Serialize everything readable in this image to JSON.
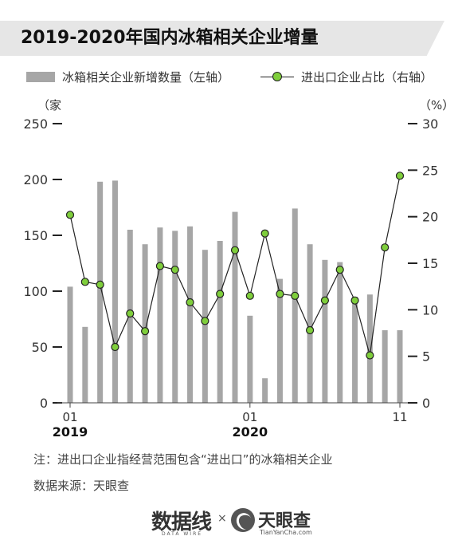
{
  "title": "2019-2020年国内冰箱相关企业增量",
  "legend": {
    "bar_label": "冰箱相关企业新增数量（左轴）",
    "line_label": "进出口企业占比（右轴）"
  },
  "axes": {
    "left_unit": "（家",
    "right_unit": "（%）"
  },
  "note": "注：进出口企业指经营范围包含“进出口”的冰箱相关企业",
  "source": "数据来源：天眼查",
  "footer": {
    "brand1": "数据线",
    "brand1_sub": "DATA WIRE",
    "times": "×",
    "brand2": "天眼查",
    "brand2_sub": "TianYanCha.com"
  },
  "colors": {
    "bar": "#a6a6a6",
    "line": "#222222",
    "marker": "#7fce3c",
    "title_bg": "#e6e6e6"
  },
  "chart_data": {
    "type": "bar",
    "categories": [
      "2019-01",
      "2019-02",
      "2019-03",
      "2019-04",
      "2019-05",
      "2019-06",
      "2019-07",
      "2019-08",
      "2019-09",
      "2019-10",
      "2019-11",
      "2019-12",
      "2020-01",
      "2020-02",
      "2020-03",
      "2020-04",
      "2020-05",
      "2020-06",
      "2020-07",
      "2020-08",
      "2020-09",
      "2020-10",
      "2020-11"
    ],
    "x_tick_labels": [
      "01",
      "",
      "",
      "",
      "",
      "",
      "",
      "",
      "",
      "",
      "",
      "",
      "01",
      "",
      "",
      "",
      "",
      "",
      "",
      "",
      "",
      "",
      "11"
    ],
    "year_labels": [
      {
        "index": 0,
        "label": "2019"
      },
      {
        "index": 12,
        "label": "2020"
      }
    ],
    "series": [
      {
        "name": "冰箱相关企业新增数量（左轴）",
        "axis": "left",
        "type": "bar",
        "values": [
          104,
          68,
          198,
          199,
          155,
          142,
          157,
          154,
          158,
          137,
          145,
          171,
          78,
          22,
          111,
          174,
          142,
          128,
          126,
          95,
          97,
          65,
          65
        ]
      },
      {
        "name": "进出口企业占比（右轴）",
        "axis": "right",
        "type": "line",
        "values": [
          20.2,
          13.0,
          12.7,
          6.0,
          9.6,
          7.7,
          14.7,
          14.3,
          10.8,
          8.8,
          11.7,
          16.4,
          11.5,
          18.2,
          11.7,
          11.5,
          7.8,
          11.0,
          14.3,
          11.0,
          5.1,
          16.7,
          24.4
        ]
      }
    ],
    "left_axis": {
      "ylim": [
        0,
        250
      ],
      "ticks": [
        0,
        50,
        100,
        150,
        200,
        250
      ]
    },
    "right_axis": {
      "ylim": [
        0,
        30
      ],
      "ticks": [
        0,
        5,
        10,
        15,
        20,
        25,
        30
      ]
    },
    "legend_position": "top"
  }
}
